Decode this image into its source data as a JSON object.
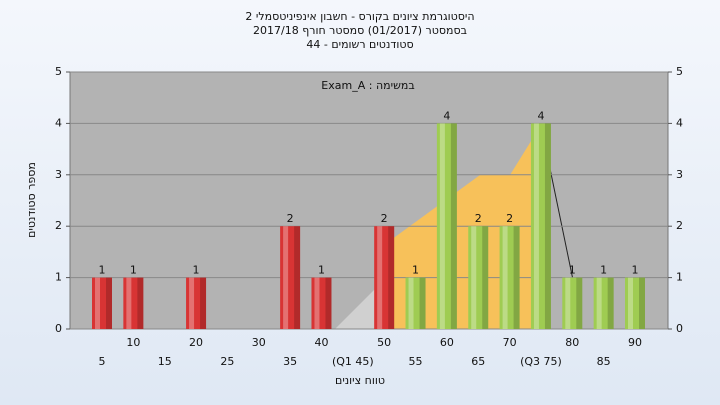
{
  "chart_data": {
    "type": "bar",
    "title_lines": [
      "היסטוגרמת ציונים בקורס - חשבון אינפיניטסמלי 2",
      "בסמסטר  (01/2017)  סמסטר חורף 2017/18",
      "סטודנטים רשומים - 44"
    ],
    "annotation": "במשימה : Exam_A",
    "y_axis_label": "מספר סטודנטים",
    "x_axis_label": "טווח ציונים",
    "categories": [
      "5",
      "10",
      "15",
      "20",
      "25",
      "30",
      "35",
      "40",
      "(Q1 45)",
      "50",
      "55",
      "60",
      "65",
      "70",
      "(Q3 75)",
      "80",
      "85",
      "90"
    ],
    "values": [
      1,
      1,
      0,
      1,
      0,
      0,
      2,
      1,
      0,
      2,
      1,
      4,
      2,
      2,
      4,
      1,
      1,
      1
    ],
    "colors": [
      "#d83434",
      "#d83434",
      "#d83434",
      "#d83434",
      "#d83434",
      "#d83434",
      "#d83434",
      "#d83434",
      "#d83434",
      "#d83434",
      "#9fcc52",
      "#9fcc52",
      "#9fcc52",
      "#9fcc52",
      "#9fcc52",
      "#9fcc52",
      "#9fcc52",
      "#9fcc52"
    ],
    "ylim": [
      0,
      5
    ],
    "yticks": [
      0,
      1,
      2,
      3,
      4,
      5
    ],
    "grid": true
  }
}
